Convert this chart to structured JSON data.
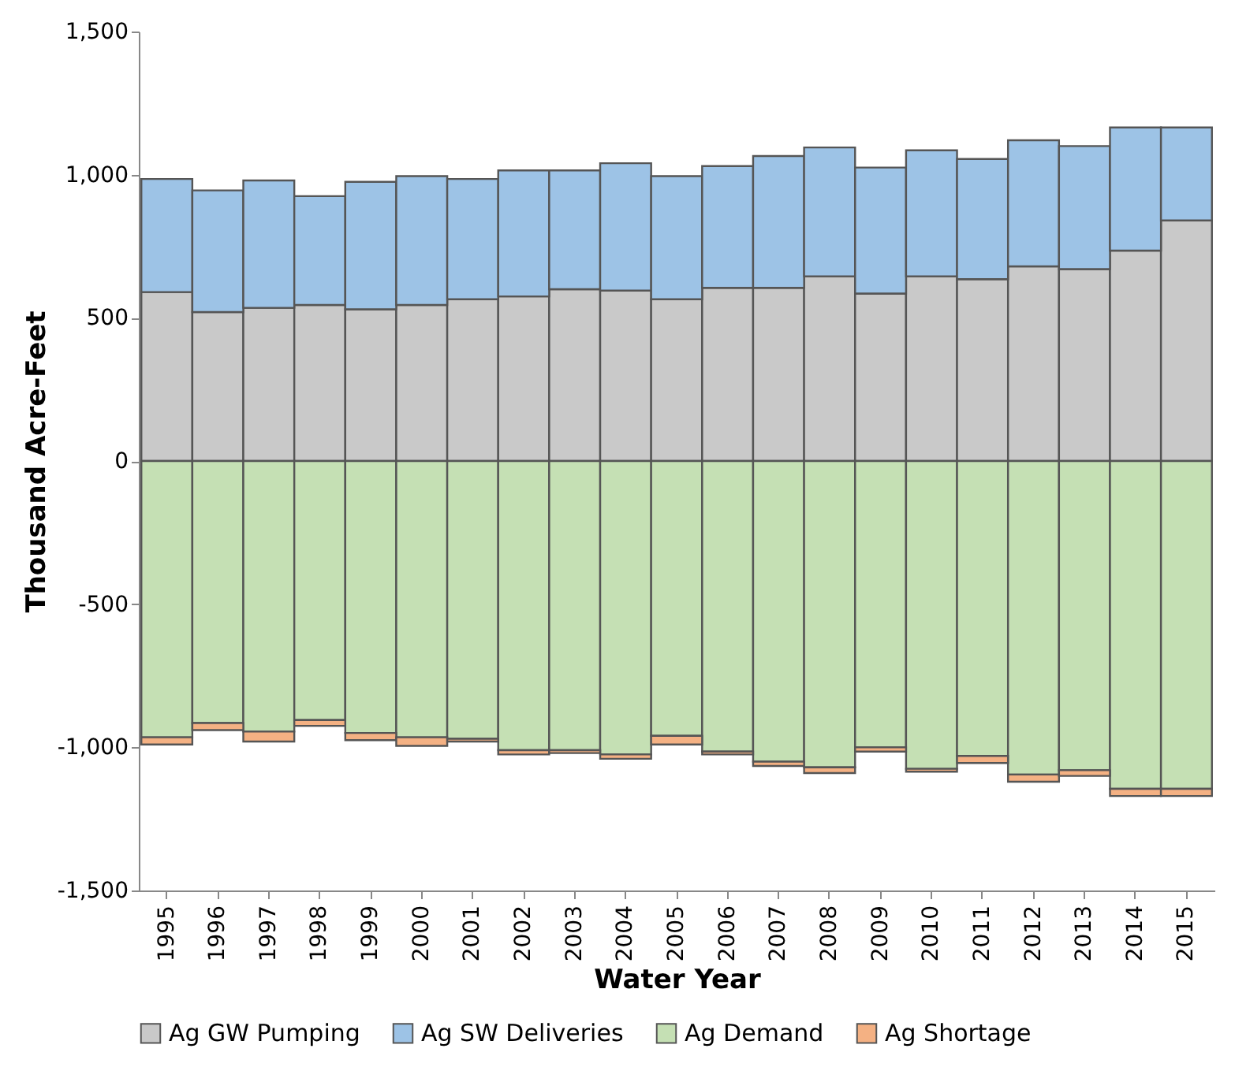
{
  "chart_data": {
    "type": "bar",
    "stacked": true,
    "xlabel": "Water Year",
    "ylabel": "Thousand Acre-Feet",
    "categories": [
      "1995",
      "1996",
      "1997",
      "1998",
      "1999",
      "2000",
      "2001",
      "2002",
      "2003",
      "2004",
      "2005",
      "2006",
      "2007",
      "2008",
      "2009",
      "2010",
      "2011",
      "2012",
      "2013",
      "2014",
      "2015"
    ],
    "series": [
      {
        "name": "Ag GW Pumping",
        "color": "#c9c9c9",
        "values": [
          590,
          520,
          535,
          545,
          530,
          545,
          565,
          575,
          600,
          595,
          565,
          605,
          605,
          645,
          585,
          645,
          635,
          680,
          670,
          735,
          840
        ]
      },
      {
        "name": "Ag SW Deliveries",
        "color": "#9dc3e6",
        "values": [
          395,
          425,
          445,
          380,
          445,
          450,
          420,
          440,
          415,
          445,
          430,
          425,
          460,
          450,
          440,
          440,
          420,
          440,
          430,
          430,
          325
        ]
      },
      {
        "name": "Ag Demand",
        "color": "#c5e0b4",
        "values": [
          -965,
          -915,
          -945,
          -905,
          -950,
          -965,
          -970,
          -1010,
          -1010,
          -1025,
          -960,
          -1015,
          -1050,
          -1070,
          -1000,
          -1075,
          -1030,
          -1095,
          -1080,
          -1145,
          -1145
        ]
      },
      {
        "name": "Ag Shortage",
        "color": "#f4b183",
        "values": [
          -25,
          -25,
          -35,
          -20,
          -25,
          -30,
          -10,
          -15,
          -10,
          -15,
          -30,
          -10,
          -15,
          -20,
          -15,
          -10,
          -25,
          -25,
          -20,
          -25,
          -25
        ]
      }
    ],
    "ylim": [
      -1500,
      1500
    ],
    "yticks": [
      {
        "value": -1500,
        "label": "-1,500"
      },
      {
        "value": -1000,
        "label": "-1,000"
      },
      -500,
      0,
      500,
      {
        "value": 1000,
        "label": "1,000"
      },
      {
        "value": 1500,
        "label": "1,500"
      }
    ],
    "legend": "bottom"
  }
}
